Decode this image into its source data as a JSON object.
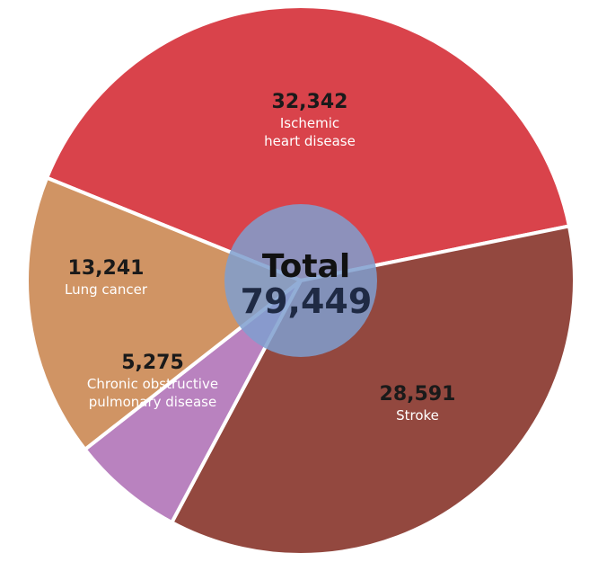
{
  "chart_data": {
    "type": "pie",
    "total": {
      "label": "Total",
      "value": "79,449"
    },
    "slices": [
      {
        "value": 32342,
        "value_text": "32,342",
        "label_lines": [
          "Ischemic",
          "heart disease"
        ],
        "color": "#d9434b"
      },
      {
        "value": 28591,
        "value_text": "28,591",
        "label_lines": [
          "Stroke"
        ],
        "color": "#93483f"
      },
      {
        "value": 5275,
        "value_text": "5,275",
        "label_lines": [
          "Chronic obstructive",
          "pulmonary disease"
        ],
        "color": "#b982bf"
      },
      {
        "value": 13241,
        "value_text": "13,241",
        "label_lines": [
          "Lung cancer"
        ],
        "color": "#d09464"
      }
    ],
    "colors": {
      "center_circle": "#7f9fcf",
      "background": "#ffffff",
      "separator": "#ffffff"
    }
  }
}
